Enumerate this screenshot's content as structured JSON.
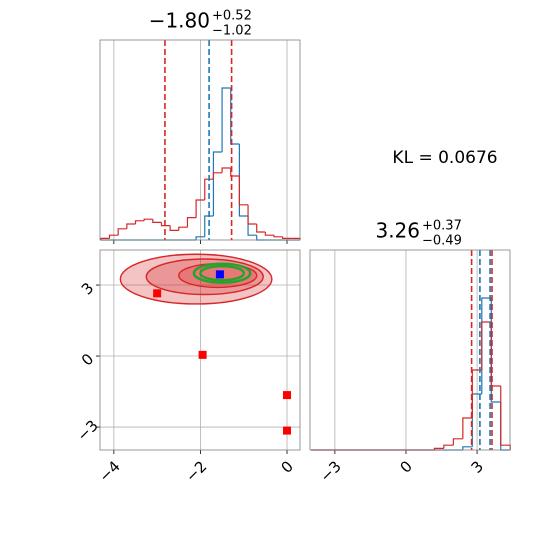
{
  "chart_data": [
    {
      "type": "histogram",
      "title": {
        "main": "−1.80",
        "upper": "+0.52",
        "lower": "−1.02"
      },
      "bins": [
        -4.3,
        -4.1,
        -3.9,
        -3.7,
        -3.5,
        -3.3,
        -3.1,
        -2.9,
        -2.7,
        -2.5,
        -2.3,
        -2.1,
        -1.9,
        -1.7,
        -1.5,
        -1.3,
        -1.1,
        -0.9,
        -0.7,
        -0.5,
        -0.3,
        -0.1,
        0.1,
        0.3
      ],
      "series": [
        {
          "color": "#1f77b4",
          "values": [
            0,
            0,
            0,
            0,
            0,
            0,
            0,
            0,
            0,
            0,
            0,
            0.02,
            0.15,
            0.55,
            0.95,
            0.6,
            0.15,
            0.03,
            0,
            0,
            0,
            0,
            0
          ]
        },
        {
          "color": "#d62728",
          "values": [
            0.01,
            0.03,
            0.07,
            0.1,
            0.12,
            0.13,
            0.11,
            0.09,
            0.06,
            0.08,
            0.14,
            0.25,
            0.38,
            0.42,
            0.45,
            0.4,
            0.22,
            0.1,
            0.05,
            0.03,
            0.02,
            0.01,
            0.01
          ]
        }
      ],
      "quantiles": [
        {
          "color": "#d62728",
          "values": [
            -2.82,
            -1.28
          ]
        },
        {
          "color": "#1f77b4",
          "values": [
            -1.8
          ]
        }
      ],
      "xlim": [
        -4.32,
        0.3
      ],
      "xticks": [
        -4,
        -2,
        0
      ],
      "ylim": [
        0,
        1.25
      ],
      "grid": true
    },
    {
      "type": "contour",
      "contours": [
        {
          "color": "#d62728",
          "ellipses": [
            {
              "center": [
                -2.1,
                3.25
              ],
              "radii": [
                1.75,
                1.05
              ]
            },
            {
              "center": [
                -1.9,
                3.35
              ],
              "radii": [
                1.35,
                0.75
              ]
            },
            {
              "center": [
                -1.6,
                3.4
              ],
              "radii": [
                0.9,
                0.5
              ]
            }
          ]
        },
        {
          "color": "#2ca02c",
          "ellipses": [
            {
              "center": [
                -1.5,
                3.5
              ],
              "radii": [
                0.65,
                0.4
              ]
            },
            {
              "center": [
                -1.5,
                3.5
              ],
              "radii": [
                0.5,
                0.3
              ]
            }
          ]
        }
      ],
      "series": [
        {
          "color": "#ff0000",
          "x": [
            -3.0,
            -1.95,
            0.0,
            0.0
          ],
          "y": [
            2.65,
            0.05,
            -1.65,
            -3.15
          ]
        },
        {
          "color": "#0000ff",
          "x": [
            -1.55
          ],
          "y": [
            3.45
          ]
        }
      ],
      "xlim": [
        -4.32,
        0.3
      ],
      "xticks": [
        {
          "value": -4,
          "label": "−4"
        },
        {
          "value": -2,
          "label": "−2"
        },
        {
          "value": 0,
          "label": "0"
        }
      ],
      "ylim": [
        -3.97,
        4.48
      ],
      "yticks": [
        {
          "value": -3,
          "label": "−3"
        },
        {
          "value": 0,
          "label": "0"
        },
        {
          "value": 3,
          "label": "3"
        }
      ],
      "grid": true
    },
    {
      "type": "histogram",
      "title": {
        "main": "3.26",
        "upper": "+0.37",
        "lower": "−0.49"
      },
      "annotation": "KL = 0.0676",
      "bins": [
        -4.0,
        -3.6,
        -3.2,
        -2.8,
        -2.4,
        -2.0,
        -1.6,
        -1.2,
        -0.8,
        -0.4,
        0.0,
        0.4,
        0.8,
        1.2,
        1.6,
        2.0,
        2.4,
        2.8,
        3.2,
        3.6,
        4.0,
        4.4
      ],
      "series": [
        {
          "color": "#1f77b4",
          "values": [
            0,
            0,
            0,
            0,
            0,
            0,
            0,
            0,
            0,
            0,
            0,
            0,
            0,
            0,
            0,
            0,
            0.02,
            0.35,
            0.95,
            0.3,
            0
          ]
        },
        {
          "color": "#d62728",
          "values": [
            0,
            0,
            0,
            0,
            0,
            0,
            0,
            0,
            0,
            0,
            0,
            0,
            0,
            0.01,
            0.03,
            0.07,
            0.2,
            0.5,
            0.8,
            0.4,
            0.03
          ]
        }
      ],
      "quantiles": [
        {
          "color": "#d62728",
          "values": [
            2.77,
            3.63
          ]
        },
        {
          "color": "#1f77b4",
          "values": [
            3.12,
            3.55
          ]
        }
      ],
      "xlim": [
        -4.05,
        4.39
      ],
      "xticks": [
        {
          "value": -3,
          "label": "−3"
        },
        {
          "value": 0,
          "label": "0"
        },
        {
          "value": 3,
          "label": "3"
        }
      ],
      "ylim": [
        0,
        1.25
      ],
      "grid": true
    }
  ]
}
